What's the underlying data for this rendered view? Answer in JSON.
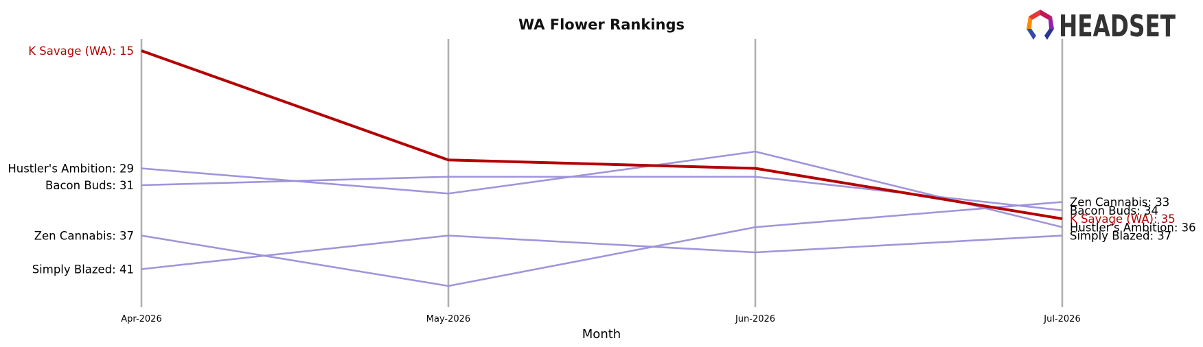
{
  "brand": {
    "logo_text": "HEADSET"
  },
  "chart_data": {
    "type": "line",
    "title": "WA Flower Rankings",
    "xlabel": "Month",
    "ylabel": "",
    "categories": [
      "Apr-2026",
      "May-2026",
      "Jun-2026",
      "Jul-2026"
    ],
    "y_inverted": true,
    "ylim": [
      14,
      44
    ],
    "grid": "vertical lines at each month",
    "highlight_color": "#b30000",
    "series_color": "#9b8fd9",
    "series": [
      {
        "name": "K Savage (WA)",
        "values": [
          15,
          28,
          29,
          35
        ],
        "highlight": true
      },
      {
        "name": "Hustler's Ambition",
        "values": [
          29,
          32,
          27,
          36
        ],
        "highlight": false
      },
      {
        "name": "Bacon Buds",
        "values": [
          31,
          30,
          30,
          34
        ],
        "highlight": false
      },
      {
        "name": "Zen Cannabis",
        "values": [
          37,
          43,
          36,
          33
        ],
        "highlight": false
      },
      {
        "name": "Simply Blazed",
        "values": [
          41,
          37,
          39,
          37
        ],
        "highlight": false
      }
    ],
    "left_labels": [
      {
        "series": "K Savage (WA)",
        "text": "K Savage (WA): 15"
      },
      {
        "series": "Hustler's Ambition",
        "text": "Hustler's Ambition: 29"
      },
      {
        "series": "Bacon Buds",
        "text": "Bacon Buds: 31"
      },
      {
        "series": "Zen Cannabis",
        "text": "Zen Cannabis: 37"
      },
      {
        "series": "Simply Blazed",
        "text": "Simply Blazed: 41"
      }
    ],
    "right_labels": [
      {
        "series": "Zen Cannabis",
        "text": "Zen Cannabis: 33"
      },
      {
        "series": "Bacon Buds",
        "text": "Bacon Buds: 34"
      },
      {
        "series": "K Savage (WA)",
        "text": "K Savage (WA): 35"
      },
      {
        "series": "Hustler's Ambition",
        "text": "Hustler's Ambition: 36"
      },
      {
        "series": "Simply Blazed",
        "text": "Simply Blazed: 37"
      }
    ]
  }
}
